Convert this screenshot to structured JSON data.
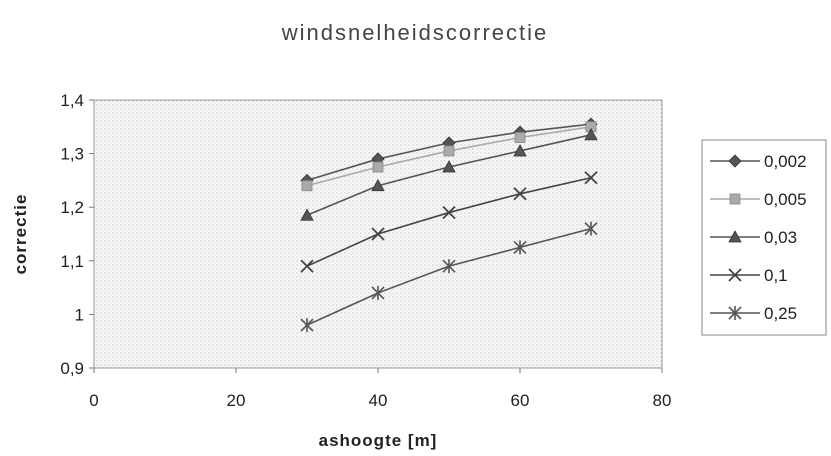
{
  "chart_data": {
    "type": "line",
    "title": "windsnelheidscorrectie",
    "xlabel": "ashoogte [m]",
    "ylabel": "correctie",
    "xlim": [
      0,
      80
    ],
    "ylim": [
      0.9,
      1.4
    ],
    "xticks": [
      "0",
      "20",
      "40",
      "60",
      "80"
    ],
    "yticks": [
      "0,9",
      "1",
      "1,1",
      "1,2",
      "1,3",
      "1,4"
    ],
    "x": [
      30,
      40,
      50,
      60,
      70
    ],
    "grid": false,
    "legend_position": "right",
    "series": [
      {
        "name": "0,002",
        "values": [
          1.25,
          1.29,
          1.32,
          1.34,
          1.355
        ],
        "marker": "diamond",
        "color": "#555555"
      },
      {
        "name": "0,005",
        "values": [
          1.24,
          1.275,
          1.305,
          1.33,
          1.35
        ],
        "marker": "square",
        "color": "#aaaaaa"
      },
      {
        "name": "0,03",
        "values": [
          1.185,
          1.24,
          1.275,
          1.305,
          1.335
        ],
        "marker": "triangle",
        "color": "#555555"
      },
      {
        "name": "0,1",
        "values": [
          1.09,
          1.15,
          1.19,
          1.225,
          1.255
        ],
        "marker": "x",
        "color": "#444444"
      },
      {
        "name": "0,25",
        "values": [
          0.98,
          1.04,
          1.09,
          1.125,
          1.16
        ],
        "marker": "star",
        "color": "#555555"
      }
    ]
  }
}
